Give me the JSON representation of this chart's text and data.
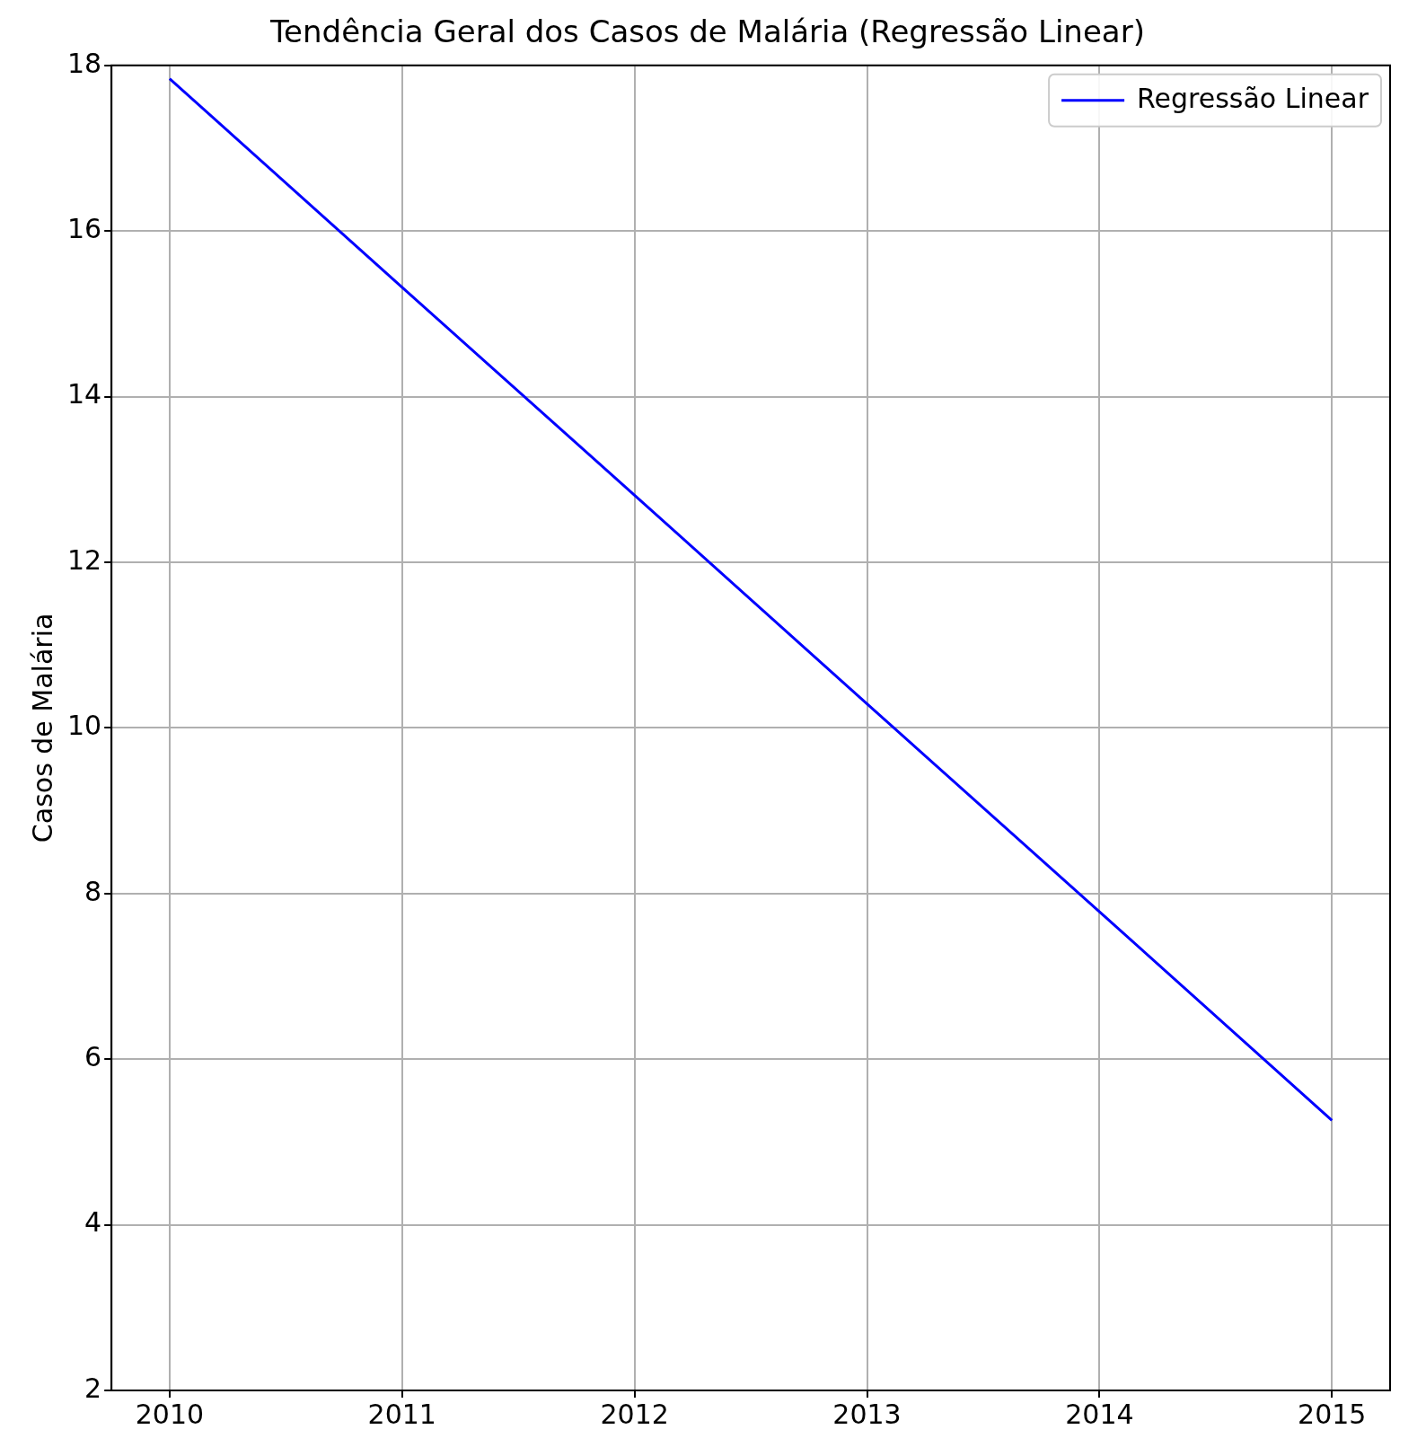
{
  "chart_data": {
    "type": "line",
    "title": "Tendência Geral dos Casos de Malária (Regressão Linear)",
    "ylabel": "Casos de Malária",
    "x": [
      2010,
      2011,
      2012,
      2013,
      2014,
      2015
    ],
    "series": [
      {
        "name": "Regressão Linear",
        "color": "#0000ff",
        "values": [
          17.84,
          15.32,
          12.81,
          10.29,
          7.78,
          5.26
        ]
      }
    ],
    "xlim": [
      2009.75,
      2015.25
    ],
    "xticks": [
      2010,
      2011,
      2012,
      2013,
      2014,
      2015
    ],
    "ylim": [
      2,
      18
    ],
    "yticks": [
      2,
      4,
      6,
      8,
      10,
      12,
      14,
      16,
      18
    ],
    "grid": true,
    "legend": "top right",
    "marker": "none",
    "line_style": "solid"
  }
}
